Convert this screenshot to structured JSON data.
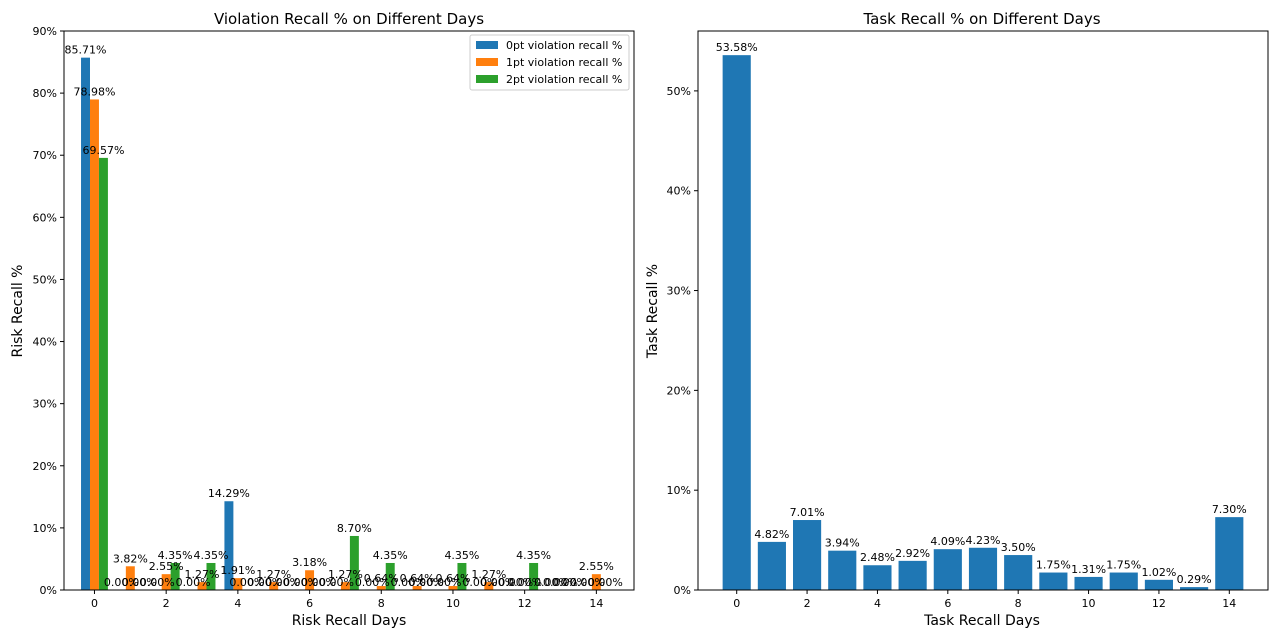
{
  "chart_data": [
    {
      "type": "bar",
      "title": "Violation Recall % on Different Days",
      "xlabel": "Risk Recall Days",
      "ylabel": "Risk Recall %",
      "ylim": [
        0,
        90
      ],
      "x": [
        0,
        1,
        2,
        3,
        4,
        5,
        6,
        7,
        8,
        9,
        10,
        11,
        12,
        13,
        14
      ],
      "xticks": [
        "0",
        "2",
        "4",
        "6",
        "8",
        "10",
        "12",
        "14"
      ],
      "yticks": [
        "0%",
        "10%",
        "20%",
        "30%",
        "40%",
        "50%",
        "60%",
        "70%",
        "80%",
        "90%"
      ],
      "legend_position": "top-right",
      "grid": false,
      "series": [
        {
          "name": "0pt violation recall %",
          "color": "#1f77b4",
          "values": [
            85.71,
            0,
            0,
            0,
            14.29,
            0,
            0,
            0,
            0,
            0,
            0,
            0,
            0,
            0,
            0
          ],
          "labels": [
            "85.71%",
            "0.00%",
            "0.00%",
            "0.00%",
            "14.29%",
            "0.00%",
            "0.00%",
            "0.00%",
            "0.00%",
            "0.00%",
            "0.00%",
            "0.00%",
            "0.00%",
            "0.00%",
            "0.00%"
          ]
        },
        {
          "name": "1pt violation recall %",
          "color": "#ff7f0e",
          "values": [
            78.98,
            3.82,
            2.55,
            1.27,
            1.91,
            1.27,
            3.18,
            1.27,
            0.64,
            0.64,
            0.64,
            1.27,
            0,
            0,
            2.55
          ],
          "labels": [
            "78.98%",
            "3.82%",
            "2.55%",
            "1.27%",
            "1.91%",
            "1.27%",
            "3.18%",
            "1.27%",
            "0.64%",
            "0.64%",
            "0.64%",
            "1.27%",
            "0.00%",
            "0.00%",
            "2.55%"
          ]
        },
        {
          "name": "2pt violation recall %",
          "color": "#2ca02c",
          "values": [
            69.57,
            0,
            4.35,
            4.35,
            0,
            0,
            0,
            8.7,
            4.35,
            0,
            4.35,
            0,
            4.35,
            0,
            0
          ],
          "labels": [
            "69.57%",
            "0.00%",
            "4.35%",
            "4.35%",
            "0.00%",
            "0.00%",
            "0.00%",
            "8.70%",
            "4.35%",
            "0.00%",
            "4.35%",
            "0.00%",
            "4.35%",
            "0.00%",
            "0.00%"
          ]
        }
      ]
    },
    {
      "type": "bar",
      "title": "Task Recall % on Different Days",
      "xlabel": "Task Recall Days",
      "ylabel": "Task Recall %",
      "ylim": [
        0,
        56
      ],
      "x": [
        0,
        1,
        2,
        3,
        4,
        5,
        6,
        7,
        8,
        9,
        10,
        11,
        12,
        13,
        14
      ],
      "xticks": [
        "0",
        "2",
        "4",
        "6",
        "8",
        "10",
        "12",
        "14"
      ],
      "yticks": [
        "0%",
        "10%",
        "20%",
        "30%",
        "40%",
        "50%"
      ],
      "grid": false,
      "series": [
        {
          "color": "#1f77b4",
          "values": [
            53.58,
            4.82,
            7.01,
            3.94,
            2.48,
            2.92,
            4.09,
            4.23,
            3.5,
            1.75,
            1.31,
            1.75,
            1.02,
            0.29,
            7.3
          ],
          "labels": [
            "53.58%",
            "4.82%",
            "7.01%",
            "3.94%",
            "2.48%",
            "2.92%",
            "4.09%",
            "4.23%",
            "3.50%",
            "1.75%",
            "1.31%",
            "1.75%",
            "1.02%",
            "0.29%",
            "7.30%"
          ]
        }
      ]
    }
  ]
}
